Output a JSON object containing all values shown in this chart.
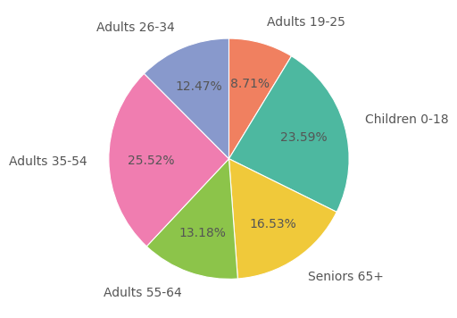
{
  "labels": [
    "Adults 19-25",
    "Children 0-18",
    "Seniors 65+",
    "Adults 55-64",
    "Adults 35-54",
    "Adults 26-34"
  ],
  "values": [
    8.71,
    23.59,
    16.53,
    13.18,
    25.52,
    12.47
  ],
  "colors": [
    "#f08060",
    "#4db8a0",
    "#f0c93a",
    "#8cc44a",
    "#f07db0",
    "#8899cc"
  ],
  "label_fontsize": 10,
  "pct_fontsize": 10,
  "startangle": 90,
  "background_color": "#ffffff"
}
